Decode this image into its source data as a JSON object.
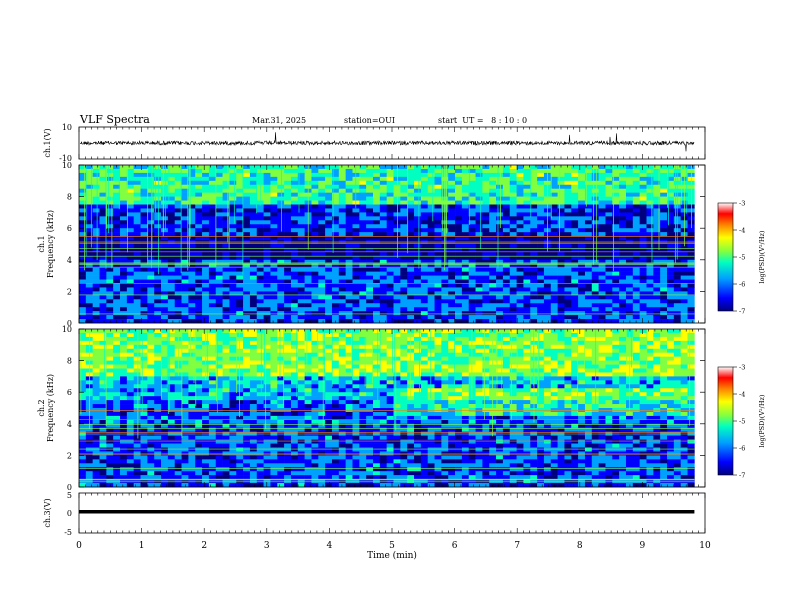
{
  "header": {
    "title": "VLF Spectra",
    "date": "Mar.31, 2025",
    "station": "station=OUI",
    "start_ut": "start  UT =   8 : 10 : 0"
  },
  "chart_data": [
    {
      "type": "line",
      "name": "ch1-waveform",
      "ylabel": "ch.1(V)",
      "ylim": [
        -10,
        10
      ],
      "yticks": [
        "10",
        "-10"
      ],
      "xlim": [
        0,
        10
      ],
      "grid": false
    },
    {
      "type": "heatmap",
      "name": "ch1-spectrogram",
      "ylabel": "ch.1\nFrequency (kHz)",
      "ylim": [
        0,
        10
      ],
      "yticks": [
        "0",
        "2",
        "4",
        "6",
        "8",
        "10"
      ],
      "xlim": [
        0,
        10
      ],
      "colorbar": {
        "label": "log(PSD)(V²/Hz)",
        "range": [
          -7,
          -3
        ],
        "ticks": [
          "-3",
          "-4",
          "-5",
          "-6",
          "-7"
        ]
      }
    },
    {
      "type": "heatmap",
      "name": "ch2-spectrogram",
      "ylabel": "ch.2\nFrequency (kHz)",
      "ylim": [
        0,
        10
      ],
      "yticks": [
        "0",
        "2",
        "4",
        "6",
        "8",
        "10"
      ],
      "xlim": [
        0,
        10
      ],
      "colorbar": {
        "label": "log(PSD)(V²/Hz)",
        "range": [
          -7,
          -3
        ],
        "ticks": [
          "-3",
          "-4",
          "-5",
          "-6",
          "-7"
        ]
      }
    },
    {
      "type": "line",
      "name": "ch3-waveform",
      "ylabel": "ch.3(V)",
      "ylim": [
        -5,
        5
      ],
      "yticks": [
        "5",
        "0",
        "-5"
      ],
      "xlim": [
        0,
        10
      ],
      "value": 0,
      "grid": false
    }
  ],
  "xaxis": {
    "label": "Time (min)",
    "ticks": [
      "0",
      "1",
      "2",
      "3",
      "4",
      "5",
      "6",
      "7",
      "8",
      "9",
      "10"
    ],
    "data_end_min": 9.83
  },
  "colors": {
    "scale": [
      "#00007f",
      "#0000ff",
      "#00a0ff",
      "#00ffc0",
      "#80ff40",
      "#ffff00",
      "#ff8000",
      "#ff0000",
      "#7f0000"
    ],
    "line": "#000000"
  }
}
